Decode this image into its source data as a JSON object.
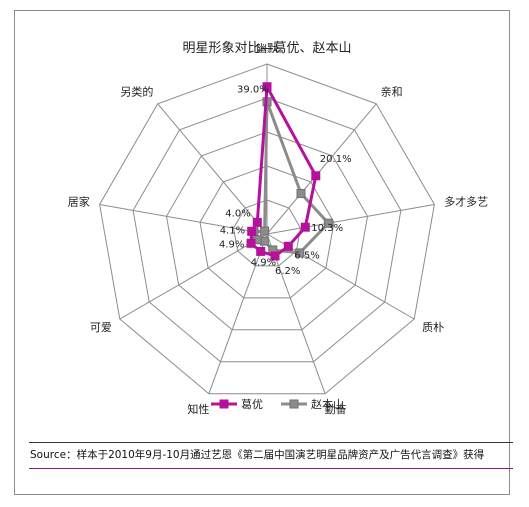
{
  "chart_data": {
    "type": "radar",
    "title": "明星形象对比—葛优、赵本山",
    "axes": [
      "幽默",
      "亲和",
      "多才多艺",
      "质朴",
      "勤奋",
      "知性",
      "可爱",
      "居家",
      "另类的"
    ],
    "rmax": 45,
    "series": [
      {
        "name": "葛优",
        "color": "#b5119d",
        "values": [
          39.0,
          20.1,
          10.3,
          6.5,
          6.2,
          4.9,
          4.9,
          4.1,
          4.0
        ]
      },
      {
        "name": "赵本山",
        "color": "#8c8c8c",
        "values": [
          35.0,
          14.0,
          16.5,
          10.0,
          4.5,
          2.0,
          3.0,
          3.5,
          1.0
        ]
      }
    ],
    "data_labels": [
      "39.0%",
      "20.1%",
      "10.3%",
      "6.5%",
      "6.2%",
      "4.9%",
      "4.9%",
      "4.1%",
      "4.0%"
    ],
    "legend_position": "bottom",
    "grid": true,
    "source": "Source：样本于2010年9月-10月通过艺恩《第二届中国演艺明星品牌资产及广告代言调查》获得"
  }
}
